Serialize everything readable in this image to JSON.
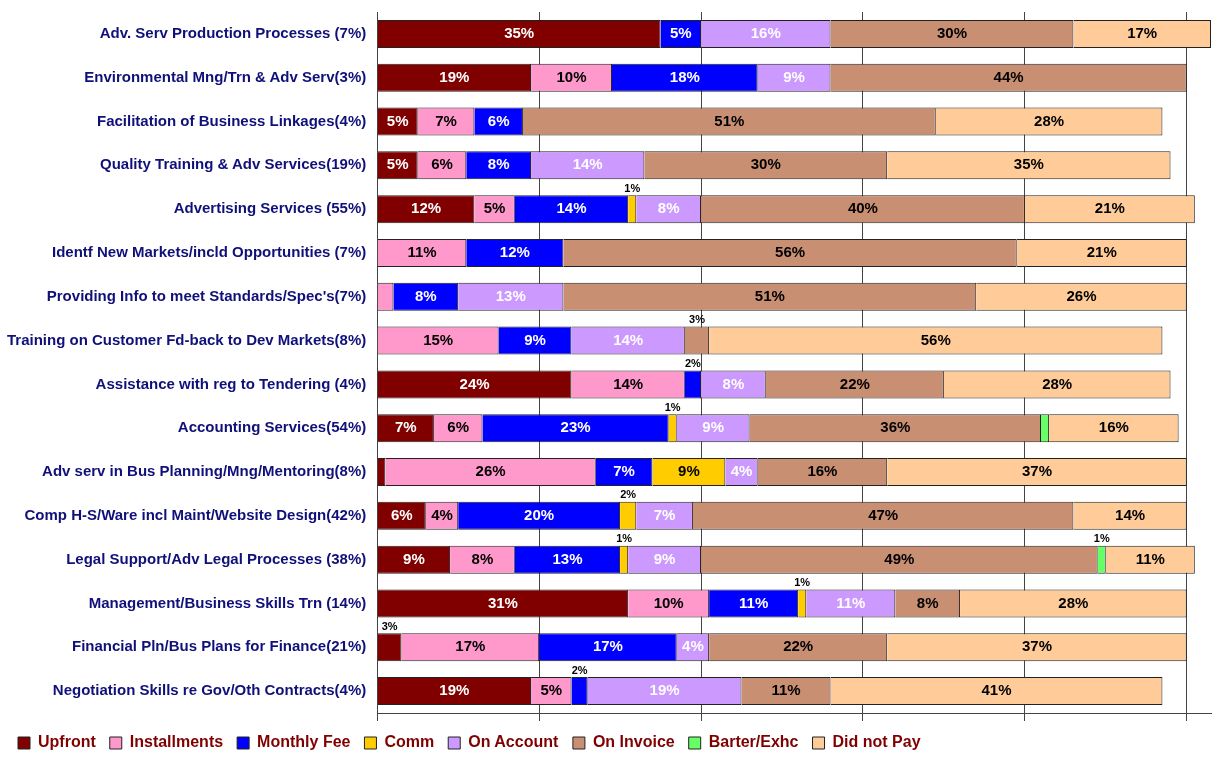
{
  "chart_data": {
    "type": "bar",
    "orientation": "horizontal",
    "stacked": true,
    "categories": [
      "Adv. Serv Production Processes (7%)",
      "Environmental Mng/Trn & Adv Serv(3%)",
      "Facilitation of Business Linkages(4%)",
      "Quality Training & Adv Services(19%)",
      "Advertising Services (55%)",
      "Identf New Markets/incld Opportunities (7%)",
      "Providing Info to meet Standards/Spec's(7%)",
      "Training on Customer Fd-back to Dev Markets(8%)",
      "Assistance with reg to Tendering (4%)",
      "Accounting Services(54%)",
      "Adv serv in Bus Planning/Mng/Mentoring(8%)",
      "Comp H-S/Ware incl Maint/Website Design(42%)",
      "Legal Support/Adv Legal Processes (38%)",
      "Management/Business Skills Trn (14%)",
      "Financial Pln/Bus Plans for Finance(21%)",
      "Negotiation Skills re Gov/Oth Contracts(4%)"
    ],
    "series": [
      {
        "name": "Upfront",
        "color": "#800000",
        "values": [
          35,
          19,
          5,
          5,
          12,
          null,
          null,
          null,
          24,
          7,
          1,
          6,
          9,
          31,
          3,
          19
        ],
        "value_labels": [
          "35%",
          "19%",
          "5%",
          "5%",
          "12%",
          null,
          null,
          null,
          "24%",
          "7%",
          null,
          "6%",
          "9%",
          "31%",
          "3%",
          "19%"
        ]
      },
      {
        "name": "Installments",
        "color": "#ff99cc",
        "values": [
          null,
          10,
          7,
          6,
          5,
          11,
          2,
          15,
          14,
          6,
          26,
          4,
          8,
          10,
          17,
          5
        ],
        "value_labels": [
          null,
          "10%",
          "7%",
          "6%",
          "5%",
          "11%",
          null,
          "15%",
          "14%",
          "6%",
          "26%",
          "4%",
          "8%",
          "10%",
          "17%",
          "5%"
        ]
      },
      {
        "name": "Monthly Fee",
        "color": "#0000ff",
        "values": [
          5,
          18,
          6,
          8,
          14,
          12,
          8,
          9,
          2,
          23,
          7,
          20,
          13,
          11,
          17,
          2
        ],
        "value_labels": [
          "5%",
          "18%",
          "6%",
          "8%",
          "14%",
          "12%",
          "8%",
          "9%",
          "2%",
          "23%",
          "7%",
          "20%",
          "13%",
          "11%",
          "17%",
          "2%"
        ]
      },
      {
        "name": "Comm",
        "color": "#ffcc00",
        "values": [
          null,
          null,
          null,
          null,
          1,
          null,
          null,
          null,
          null,
          1,
          9,
          2,
          1,
          1,
          null,
          null
        ],
        "value_labels": [
          null,
          null,
          null,
          null,
          "1%",
          null,
          null,
          null,
          null,
          "1%",
          "9%",
          "2%",
          "1%",
          "1%",
          null,
          null
        ]
      },
      {
        "name": "On Account",
        "color": "#cc99ff",
        "values": [
          16,
          9,
          null,
          14,
          8,
          null,
          13,
          14,
          8,
          9,
          4,
          7,
          9,
          11,
          4,
          19
        ],
        "value_labels": [
          "16%",
          "9%",
          null,
          "14%",
          "8%",
          null,
          "13%",
          "14%",
          "8%",
          "9%",
          "4%",
          "7%",
          "9%",
          "11%",
          "4%",
          "19%"
        ]
      },
      {
        "name": "On Invoice",
        "color": "#c98f73",
        "values": [
          30,
          44,
          51,
          30,
          40,
          56,
          51,
          3,
          22,
          36,
          16,
          47,
          49,
          8,
          22,
          11
        ],
        "value_labels": [
          "30%",
          "44%",
          "51%",
          "30%",
          "40%",
          "56%",
          "51%",
          "3%",
          "22%",
          "36%",
          "16%",
          "47%",
          "49%",
          "8%",
          "22%",
          "11%"
        ]
      },
      {
        "name": "Barter/Exhc",
        "color": "#66ff66",
        "values": [
          null,
          null,
          null,
          null,
          null,
          null,
          null,
          null,
          null,
          1,
          null,
          null,
          1,
          null,
          null,
          null
        ],
        "value_labels": [
          null,
          null,
          null,
          null,
          null,
          null,
          null,
          null,
          null,
          null,
          null,
          null,
          "1%",
          null,
          null,
          null
        ]
      },
      {
        "name": "Did not Pay",
        "color": "#ffcc99",
        "values": [
          17,
          null,
          28,
          35,
          21,
          21,
          26,
          56,
          28,
          16,
          37,
          14,
          11,
          28,
          37,
          41
        ],
        "value_labels": [
          "17%",
          null,
          "28%",
          "35%",
          "21%",
          "21%",
          "26%",
          "56%",
          "28%",
          "16%",
          "37%",
          "14%",
          "11%",
          "28%",
          "37%",
          "41%"
        ]
      }
    ],
    "xlim": [
      0,
      103
    ],
    "xticks": [
      {
        "value": 0,
        "label": null
      },
      {
        "value": 20,
        "label": null
      },
      {
        "value": 40,
        "label": null
      },
      {
        "value": 60,
        "label": null
      },
      {
        "value": 80,
        "label": null
      },
      {
        "value": 100,
        "label": null
      }
    ],
    "grid": "x",
    "legend": "bottom",
    "tick_labels": "y"
  }
}
